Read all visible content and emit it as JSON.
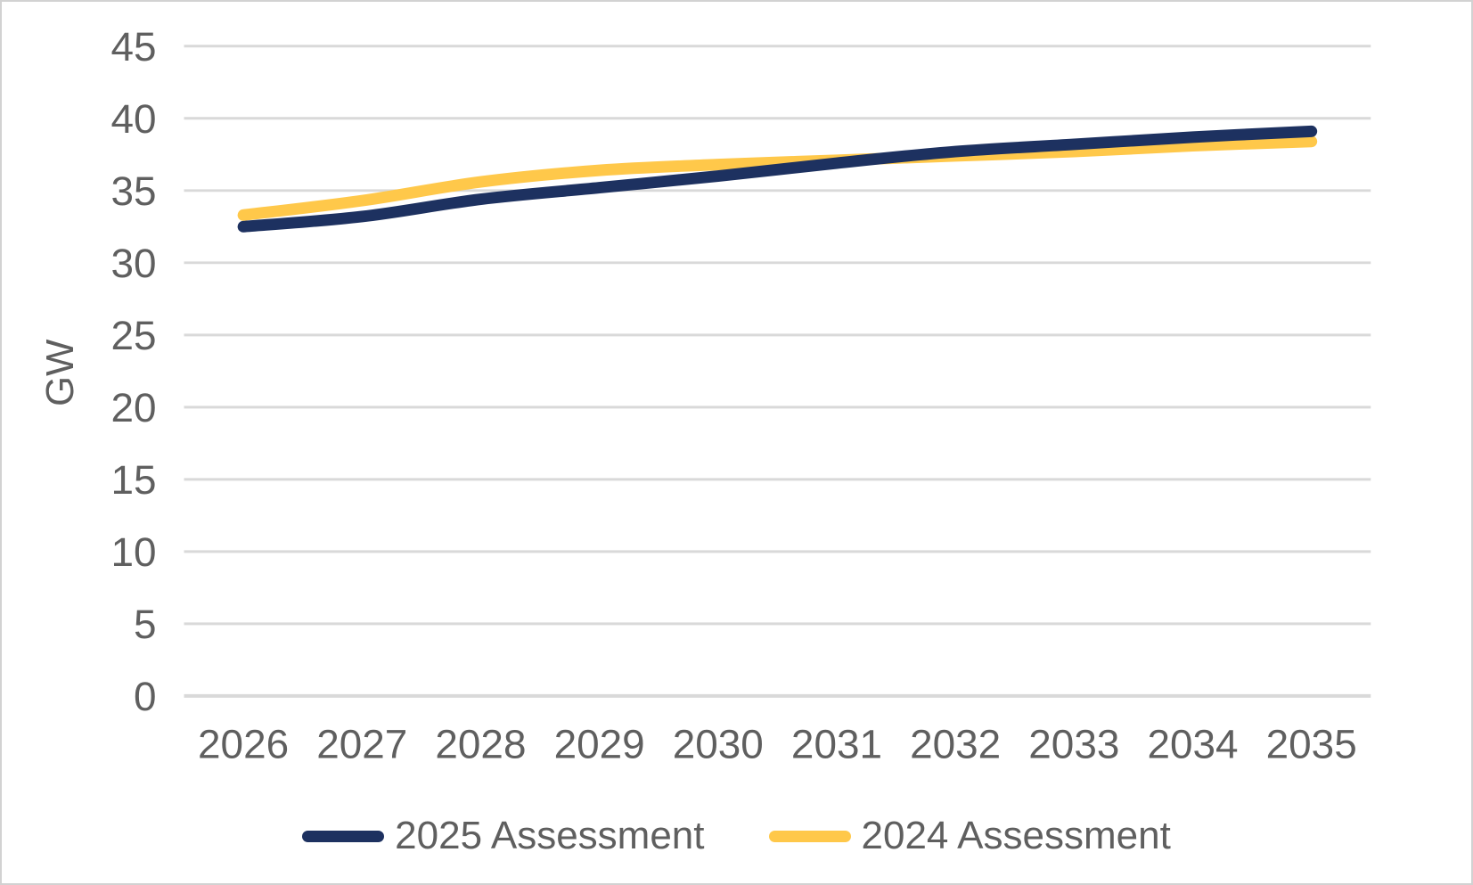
{
  "chart_data": {
    "type": "line",
    "title": "",
    "xlabel": "",
    "ylabel": "GW",
    "categories": [
      "2026",
      "2027",
      "2028",
      "2029",
      "2030",
      "2031",
      "2032",
      "2033",
      "2034",
      "2035"
    ],
    "series": [
      {
        "name": "2025 Assessment",
        "color": "#1d3160",
        "values": [
          32.5,
          33.2,
          34.4,
          35.2,
          36.0,
          36.9,
          37.7,
          38.2,
          38.7,
          39.1
        ]
      },
      {
        "name": "2024 Assessment",
        "color": "#ffc84a",
        "values": [
          33.3,
          34.3,
          35.6,
          36.4,
          36.8,
          37.1,
          37.4,
          37.7,
          38.1,
          38.4
        ]
      }
    ],
    "ylim": [
      0,
      45
    ],
    "yticks": [
      0,
      5,
      10,
      15,
      20,
      25,
      30,
      35,
      40,
      45
    ],
    "grid": "horizontal",
    "legend_position": "bottom-center",
    "line_smoothing": true
  },
  "style": {
    "gridline_color": "#d9d9d9",
    "tick_label_color": "#5f5f5f",
    "background_color": "#ffffff",
    "frame_border_color": "#d2d2d2",
    "line_width": 13
  }
}
